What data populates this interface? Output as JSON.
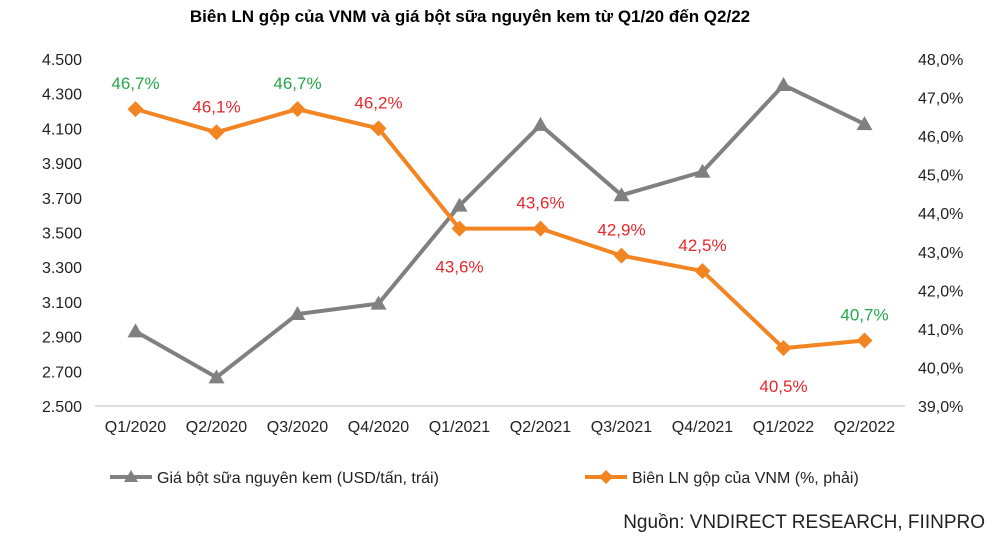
{
  "chart_data": {
    "type": "line",
    "title": "Biên LN gộp của VNM và giá bột sữa nguyên kem từ Q1/20 đến Q2/22",
    "categories": [
      "Q1/2020",
      "Q2/2020",
      "Q3/2020",
      "Q4/2020",
      "Q1/2021",
      "Q2/2021",
      "Q3/2021",
      "Q4/2021",
      "Q1/2022",
      "Q2/2022"
    ],
    "y_left": {
      "ylim": [
        2500,
        4500
      ],
      "ticks": [
        "2.500",
        "2.700",
        "2.900",
        "3.100",
        "3.300",
        "3.500",
        "3.700",
        "3.900",
        "4.100",
        "4.300",
        "4.500"
      ]
    },
    "y_right": {
      "ylim": [
        39,
        48
      ],
      "ticks": [
        "39,0%",
        "40,0%",
        "41,0%",
        "42,0%",
        "43,0%",
        "44,0%",
        "45,0%",
        "46,0%",
        "47,0%",
        "48,0%"
      ]
    },
    "grid": false,
    "legend_placement": "bottom",
    "series": [
      {
        "name": "Giá bột sữa nguyên kem (USD/tấn, trái)",
        "axis": "left",
        "color": "#808080",
        "marker": "triangle",
        "values": [
          2930,
          2665,
          3030,
          3090,
          3655,
          4120,
          3715,
          3850,
          4350,
          4125
        ]
      },
      {
        "name": "Biên LN gộp của VNM (%, phải)",
        "axis": "right",
        "color": "#F28522",
        "marker": "diamond",
        "values": [
          46.7,
          46.1,
          46.7,
          46.2,
          43.6,
          43.6,
          42.9,
          42.5,
          40.5,
          40.7
        ],
        "data_labels": [
          "46,7%",
          "46,1%",
          "46,7%",
          "46,2%",
          "43,6%",
          "43,6%",
          "42,9%",
          "42,5%",
          "40,5%",
          "40,7%"
        ],
        "label_colors": [
          "#22A84A",
          "#E8262B",
          "#22A84A",
          "#E8262B",
          "#E8262B",
          "#E8262B",
          "#E8262B",
          "#E8262B",
          "#E8262B",
          "#22A84A"
        ],
        "label_below": [
          false,
          false,
          false,
          false,
          true,
          false,
          false,
          false,
          true,
          false
        ]
      }
    ],
    "source": "Nguồn: VNDIRECT RESEARCH, FIINPRO"
  }
}
